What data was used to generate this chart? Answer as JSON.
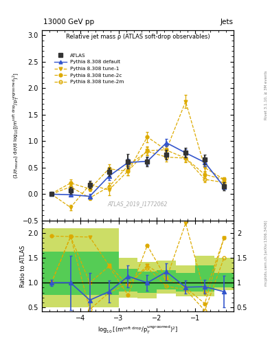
{
  "title_top": "13000 GeV pp",
  "title_right": "Jets",
  "plot_title": "Relative jet mass ρ (ATLAS soft-drop observables)",
  "watermark": "ATLAS_2019_I1772062",
  "rivet_label": "Rivet 3.1.10, ≥ 3M events",
  "arxiv_label": "mcplots.cern.ch [arXiv:1306.3436]",
  "atlas_x": [
    -4.75,
    -4.25,
    -3.75,
    -3.25,
    -2.75,
    -2.25,
    -1.75,
    -1.25,
    -0.75,
    -0.25
  ],
  "atlas_y": [
    0.01,
    0.07,
    0.18,
    0.42,
    0.62,
    0.62,
    0.74,
    0.78,
    0.65,
    0.15
  ],
  "atlas_yerr": [
    0.03,
    0.07,
    0.07,
    0.08,
    0.14,
    0.09,
    0.09,
    0.09,
    0.09,
    0.08
  ],
  "default_x": [
    -4.75,
    -4.25,
    -3.75,
    -3.25,
    -2.75,
    -2.25,
    -1.75,
    -1.25,
    -0.75,
    -0.25
  ],
  "default_y": [
    0.0,
    -0.01,
    -0.04,
    0.34,
    0.6,
    0.62,
    0.97,
    0.78,
    0.6,
    0.14
  ],
  "default_yerr": [
    0.01,
    0.01,
    0.04,
    0.08,
    0.07,
    0.07,
    0.07,
    0.07,
    0.07,
    0.04
  ],
  "tune1_x": [
    -4.75,
    -4.25,
    -3.75,
    -3.25,
    -2.75,
    -2.25,
    -1.75,
    -1.25,
    -0.75,
    -0.25
  ],
  "tune1_y": [
    0.0,
    -0.25,
    0.18,
    0.08,
    0.44,
    0.82,
    0.84,
    1.75,
    0.5,
    0.28
  ],
  "tune1_yerr": [
    0.02,
    0.05,
    0.05,
    0.1,
    0.08,
    0.08,
    0.08,
    0.12,
    0.08,
    0.04
  ],
  "tune2c_x": [
    -4.75,
    -4.25,
    -3.75,
    -3.25,
    -2.75,
    -2.25,
    -1.75,
    -1.25,
    -0.75,
    -0.25
  ],
  "tune2c_y": [
    0.01,
    0.21,
    0.1,
    0.48,
    0.43,
    1.08,
    0.83,
    0.68,
    0.37,
    0.28
  ],
  "tune2c_yerr": [
    0.02,
    0.07,
    0.04,
    0.08,
    0.08,
    0.1,
    0.08,
    0.08,
    0.06,
    0.04
  ],
  "tune2m_x": [
    -4.75,
    -4.25,
    -3.75,
    -3.25,
    -2.75,
    -2.25,
    -1.75,
    -1.25,
    -0.75,
    -0.25
  ],
  "tune2m_y": [
    0.0,
    0.14,
    -0.07,
    0.14,
    0.54,
    0.81,
    0.7,
    0.68,
    0.28,
    0.22
  ],
  "tune2m_yerr": [
    0.02,
    0.04,
    0.04,
    0.07,
    0.07,
    0.08,
    0.08,
    0.07,
    0.05,
    0.04
  ],
  "ratio_x": [
    -4.75,
    -4.25,
    -3.75,
    -3.25,
    -2.75,
    -2.25,
    -1.75,
    -1.25,
    -0.75,
    -0.25
  ],
  "ratio_default_y": [
    1.0,
    1.0,
    0.65,
    0.82,
    1.13,
    1.0,
    1.22,
    0.91,
    0.92,
    0.82
  ],
  "ratio_default_yerr": [
    0.06,
    0.55,
    0.55,
    0.22,
    0.22,
    0.16,
    0.17,
    0.13,
    0.14,
    0.32
  ],
  "ratio_tune1_y": [
    1.0,
    1.93,
    1.92,
    1.35,
    0.95,
    1.35,
    1.08,
    2.2,
    0.78,
    1.9
  ],
  "ratio_tune2c_y": [
    1.94,
    1.93,
    1.0,
    1.33,
    0.75,
    1.75,
    1.08,
    0.9,
    0.58,
    1.9
  ],
  "ratio_tune2m_y": [
    1.0,
    1.93,
    0.46,
    0.8,
    0.98,
    1.3,
    0.93,
    0.86,
    0.44,
    1.5
  ],
  "band_edges": [
    -5.0,
    -4.5,
    -3.5,
    -3.0,
    -2.5,
    -2.0,
    -1.5,
    -1.0,
    -0.5,
    0.0
  ],
  "band_outer_lo": [
    0.5,
    0.5,
    0.5,
    0.7,
    0.68,
    0.78,
    0.73,
    0.73,
    0.85,
    0.85
  ],
  "band_outer_hi": [
    2.1,
    2.1,
    2.1,
    1.5,
    1.42,
    1.45,
    1.35,
    1.55,
    1.5,
    1.5
  ],
  "band_inner_lo": [
    0.75,
    0.75,
    0.75,
    0.83,
    0.8,
    0.87,
    0.82,
    0.82,
    0.9,
    0.9
  ],
  "band_inner_hi": [
    1.62,
    1.62,
    1.62,
    1.28,
    1.22,
    1.25,
    1.2,
    1.35,
    1.2,
    1.2
  ],
  "xlim": [
    -5.0,
    0.0
  ],
  "ylim_main": [
    -0.5,
    3.1
  ],
  "ylim_ratio": [
    0.42,
    2.25
  ],
  "color_atlas": "#333333",
  "color_default": "#3355cc",
  "color_tune": "#ddaa00",
  "color_band_inner": "#55cc55",
  "color_band_outer": "#ccdd66",
  "yticks_main": [
    -0.5,
    0.0,
    0.5,
    1.0,
    1.5,
    2.0,
    2.5,
    3.0
  ],
  "yticks_ratio": [
    0.5,
    1.0,
    1.5,
    2.0
  ],
  "xticks": [
    -4,
    -3,
    -2,
    -1
  ]
}
